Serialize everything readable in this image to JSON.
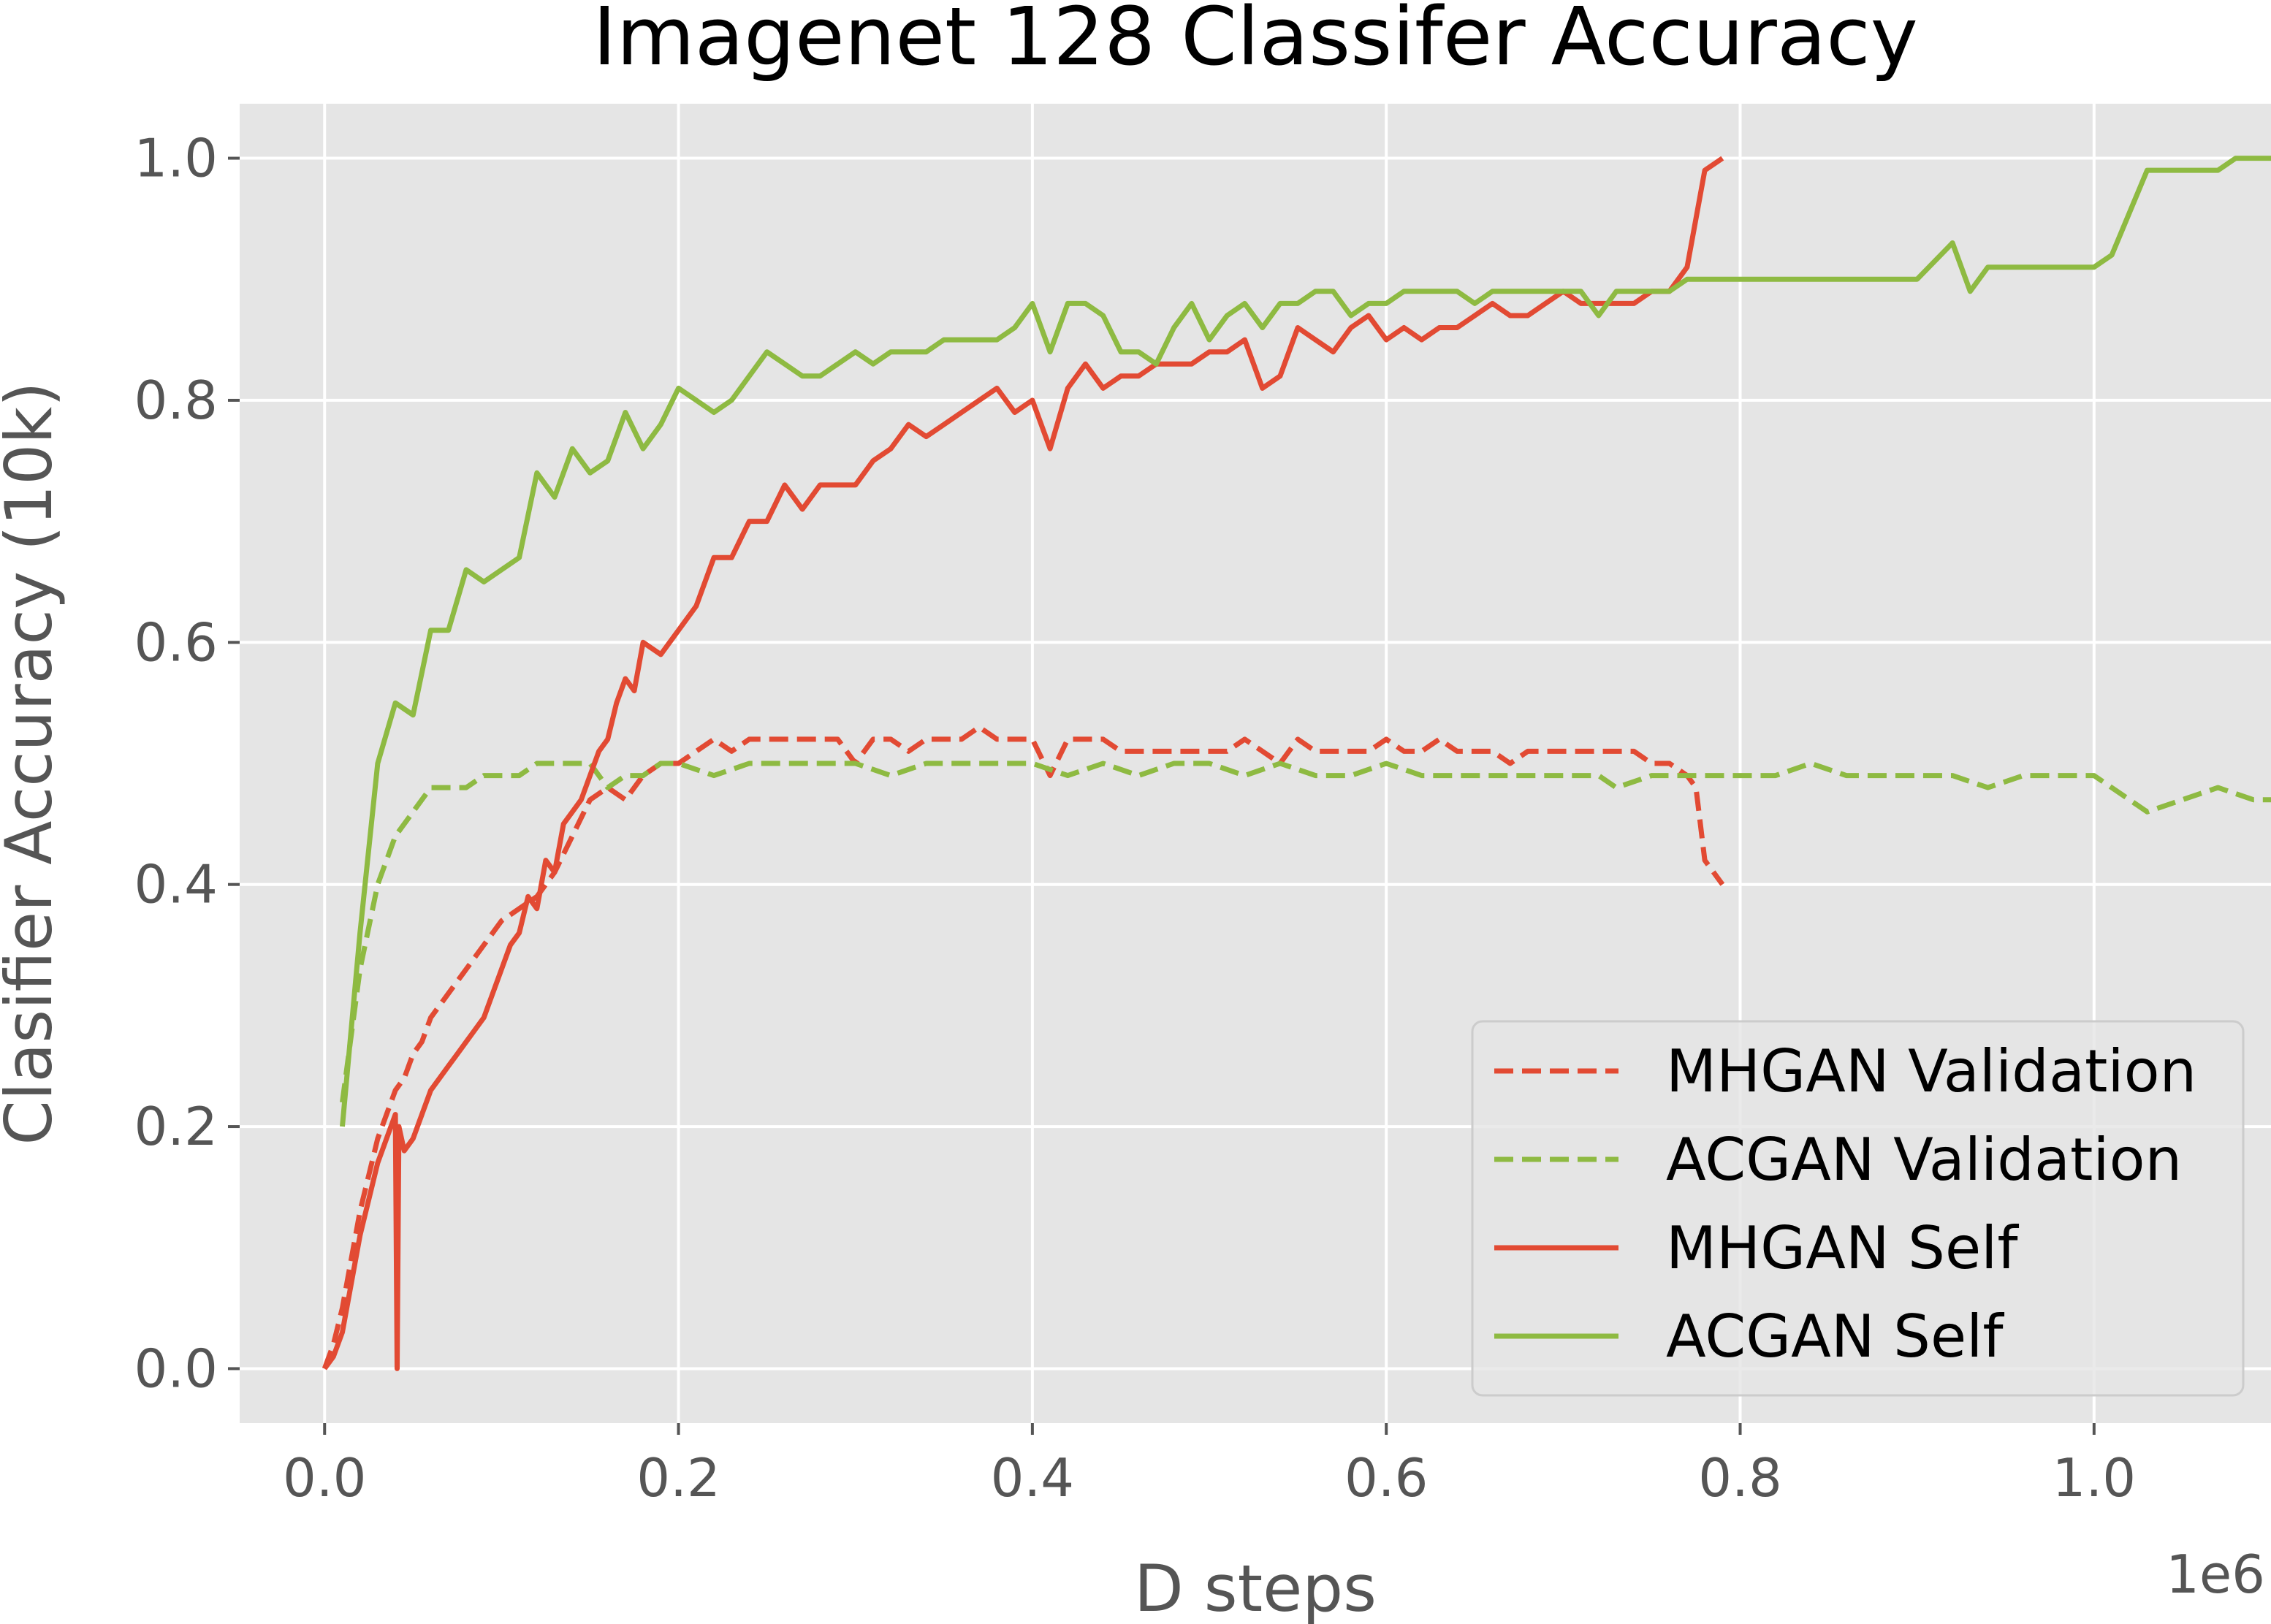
{
  "chart_data": {
    "type": "line",
    "title": "Imagenet 128 Classifer Accuracy",
    "xlabel": "D steps",
    "ylabel": "Clasifier Accuracy (10k)",
    "x_offset_label": "1e6",
    "xlim": [
      -0.048,
      1.1
    ],
    "ylim": [
      -0.045,
      1.045
    ],
    "x_ticks": [
      {
        "value": 0.0,
        "label": "0.0"
      },
      {
        "value": 0.2,
        "label": "0.2"
      },
      {
        "value": 0.4,
        "label": "0.4"
      },
      {
        "value": 0.6,
        "label": "0.6"
      },
      {
        "value": 0.8,
        "label": "0.8"
      },
      {
        "value": 1.0,
        "label": "1.0"
      }
    ],
    "y_ticks": [
      {
        "value": 0.0,
        "label": "0.0"
      },
      {
        "value": 0.2,
        "label": "0.2"
      },
      {
        "value": 0.4,
        "label": "0.4"
      },
      {
        "value": 0.6,
        "label": "0.6"
      },
      {
        "value": 0.8,
        "label": "0.8"
      },
      {
        "value": 1.0,
        "label": "1.0"
      }
    ],
    "grid": true,
    "legend_position": "lower right",
    "colors": {
      "red": "#e24a33",
      "green": "#8eba42",
      "background": "#e5e5e5",
      "grid": "#ffffff"
    },
    "series": [
      {
        "name": "MHGAN Validation",
        "color": "#e24a33",
        "dash": true,
        "x": [
          0.0,
          0.005,
          0.01,
          0.015,
          0.02,
          0.025,
          0.03,
          0.035,
          0.04,
          0.045,
          0.05,
          0.055,
          0.06,
          0.065,
          0.07,
          0.075,
          0.08,
          0.085,
          0.09,
          0.095,
          0.1,
          0.11,
          0.12,
          0.13,
          0.14,
          0.15,
          0.16,
          0.17,
          0.18,
          0.19,
          0.2,
          0.21,
          0.22,
          0.23,
          0.24,
          0.25,
          0.26,
          0.27,
          0.28,
          0.29,
          0.3,
          0.31,
          0.32,
          0.33,
          0.34,
          0.35,
          0.36,
          0.37,
          0.38,
          0.39,
          0.4,
          0.41,
          0.42,
          0.43,
          0.44,
          0.45,
          0.46,
          0.47,
          0.48,
          0.49,
          0.5,
          0.51,
          0.52,
          0.53,
          0.54,
          0.55,
          0.56,
          0.57,
          0.58,
          0.59,
          0.6,
          0.61,
          0.62,
          0.63,
          0.64,
          0.65,
          0.66,
          0.67,
          0.68,
          0.69,
          0.7,
          0.71,
          0.72,
          0.73,
          0.74,
          0.75,
          0.76,
          0.77,
          0.775,
          0.78,
          0.79
        ],
        "y": [
          0.0,
          0.02,
          0.05,
          0.09,
          0.13,
          0.16,
          0.19,
          0.21,
          0.23,
          0.24,
          0.26,
          0.27,
          0.29,
          0.3,
          0.31,
          0.32,
          0.33,
          0.34,
          0.35,
          0.36,
          0.37,
          0.38,
          0.39,
          0.41,
          0.44,
          0.47,
          0.48,
          0.47,
          0.49,
          0.5,
          0.5,
          0.51,
          0.52,
          0.51,
          0.52,
          0.52,
          0.52,
          0.52,
          0.52,
          0.52,
          0.5,
          0.52,
          0.52,
          0.51,
          0.52,
          0.52,
          0.52,
          0.53,
          0.52,
          0.52,
          0.52,
          0.49,
          0.52,
          0.52,
          0.52,
          0.51,
          0.51,
          0.51,
          0.51,
          0.51,
          0.51,
          0.51,
          0.52,
          0.51,
          0.5,
          0.52,
          0.51,
          0.51,
          0.51,
          0.51,
          0.52,
          0.51,
          0.51,
          0.52,
          0.51,
          0.51,
          0.51,
          0.5,
          0.51,
          0.51,
          0.51,
          0.51,
          0.51,
          0.51,
          0.51,
          0.5,
          0.5,
          0.49,
          0.48,
          0.42,
          0.4
        ]
      },
      {
        "name": "ACGAN Validation",
        "color": "#8eba42",
        "dash": true,
        "x": [
          0.01,
          0.02,
          0.03,
          0.04,
          0.05,
          0.06,
          0.07,
          0.08,
          0.09,
          0.1,
          0.11,
          0.12,
          0.13,
          0.14,
          0.15,
          0.16,
          0.17,
          0.18,
          0.19,
          0.2,
          0.22,
          0.24,
          0.26,
          0.28,
          0.3,
          0.32,
          0.34,
          0.36,
          0.38,
          0.4,
          0.42,
          0.44,
          0.46,
          0.48,
          0.5,
          0.52,
          0.54,
          0.56,
          0.58,
          0.6,
          0.62,
          0.64,
          0.66,
          0.68,
          0.7,
          0.72,
          0.73,
          0.75,
          0.77,
          0.79,
          0.8,
          0.82,
          0.84,
          0.86,
          0.88,
          0.9,
          0.92,
          0.94,
          0.96,
          0.98,
          1.0,
          1.02,
          1.03,
          1.05,
          1.07,
          1.09,
          1.1
        ],
        "y": [
          0.22,
          0.33,
          0.4,
          0.44,
          0.46,
          0.48,
          0.48,
          0.48,
          0.49,
          0.49,
          0.49,
          0.5,
          0.5,
          0.5,
          0.5,
          0.48,
          0.49,
          0.49,
          0.5,
          0.5,
          0.49,
          0.5,
          0.5,
          0.5,
          0.5,
          0.49,
          0.5,
          0.5,
          0.5,
          0.5,
          0.49,
          0.5,
          0.49,
          0.5,
          0.5,
          0.49,
          0.5,
          0.49,
          0.49,
          0.5,
          0.49,
          0.49,
          0.49,
          0.49,
          0.49,
          0.49,
          0.48,
          0.49,
          0.49,
          0.49,
          0.49,
          0.49,
          0.5,
          0.49,
          0.49,
          0.49,
          0.49,
          0.48,
          0.49,
          0.49,
          0.49,
          0.47,
          0.46,
          0.47,
          0.48,
          0.47,
          0.47
        ]
      },
      {
        "name": "MHGAN Self",
        "color": "#e24a33",
        "dash": false,
        "x": [
          0.0,
          0.005,
          0.01,
          0.015,
          0.02,
          0.025,
          0.03,
          0.035,
          0.04,
          0.041,
          0.042,
          0.045,
          0.05,
          0.055,
          0.06,
          0.065,
          0.07,
          0.075,
          0.08,
          0.085,
          0.09,
          0.095,
          0.1,
          0.105,
          0.11,
          0.115,
          0.12,
          0.125,
          0.13,
          0.135,
          0.14,
          0.145,
          0.15,
          0.155,
          0.16,
          0.165,
          0.17,
          0.175,
          0.18,
          0.19,
          0.2,
          0.21,
          0.22,
          0.23,
          0.24,
          0.25,
          0.26,
          0.27,
          0.28,
          0.29,
          0.3,
          0.31,
          0.32,
          0.33,
          0.34,
          0.35,
          0.36,
          0.37,
          0.38,
          0.39,
          0.4,
          0.41,
          0.42,
          0.43,
          0.44,
          0.45,
          0.46,
          0.47,
          0.48,
          0.49,
          0.5,
          0.51,
          0.52,
          0.53,
          0.54,
          0.55,
          0.56,
          0.57,
          0.58,
          0.59,
          0.6,
          0.61,
          0.62,
          0.63,
          0.64,
          0.65,
          0.66,
          0.67,
          0.68,
          0.69,
          0.7,
          0.71,
          0.72,
          0.73,
          0.74,
          0.75,
          0.76,
          0.77,
          0.78,
          0.79
        ],
        "y": [
          0.0,
          0.01,
          0.03,
          0.07,
          0.11,
          0.14,
          0.17,
          0.19,
          0.21,
          0.0,
          0.2,
          0.18,
          0.19,
          0.21,
          0.23,
          0.24,
          0.25,
          0.26,
          0.27,
          0.28,
          0.29,
          0.31,
          0.33,
          0.35,
          0.36,
          0.39,
          0.38,
          0.42,
          0.41,
          0.45,
          0.46,
          0.47,
          0.49,
          0.51,
          0.52,
          0.55,
          0.57,
          0.56,
          0.6,
          0.59,
          0.61,
          0.63,
          0.67,
          0.67,
          0.7,
          0.7,
          0.73,
          0.71,
          0.73,
          0.73,
          0.73,
          0.75,
          0.76,
          0.78,
          0.77,
          0.78,
          0.79,
          0.8,
          0.81,
          0.79,
          0.8,
          0.76,
          0.81,
          0.83,
          0.81,
          0.82,
          0.82,
          0.83,
          0.83,
          0.83,
          0.84,
          0.84,
          0.85,
          0.81,
          0.82,
          0.86,
          0.85,
          0.84,
          0.86,
          0.87,
          0.85,
          0.86,
          0.85,
          0.86,
          0.86,
          0.87,
          0.88,
          0.87,
          0.87,
          0.88,
          0.89,
          0.88,
          0.88,
          0.88,
          0.88,
          0.89,
          0.89,
          0.91,
          0.99,
          1.0
        ]
      },
      {
        "name": "ACGAN Self",
        "color": "#8eba42",
        "dash": false,
        "x": [
          0.01,
          0.02,
          0.03,
          0.04,
          0.05,
          0.06,
          0.07,
          0.08,
          0.09,
          0.1,
          0.11,
          0.12,
          0.13,
          0.14,
          0.15,
          0.16,
          0.17,
          0.18,
          0.19,
          0.2,
          0.21,
          0.22,
          0.23,
          0.24,
          0.25,
          0.26,
          0.27,
          0.28,
          0.29,
          0.3,
          0.31,
          0.32,
          0.33,
          0.34,
          0.35,
          0.36,
          0.37,
          0.38,
          0.39,
          0.4,
          0.41,
          0.42,
          0.43,
          0.44,
          0.45,
          0.46,
          0.47,
          0.48,
          0.49,
          0.5,
          0.51,
          0.52,
          0.53,
          0.54,
          0.55,
          0.56,
          0.57,
          0.58,
          0.59,
          0.6,
          0.61,
          0.62,
          0.63,
          0.64,
          0.65,
          0.66,
          0.67,
          0.68,
          0.69,
          0.7,
          0.71,
          0.72,
          0.73,
          0.74,
          0.75,
          0.76,
          0.77,
          0.78,
          0.79,
          0.8,
          0.82,
          0.84,
          0.86,
          0.88,
          0.9,
          0.92,
          0.93,
          0.94,
          0.96,
          0.98,
          1.0,
          1.01,
          1.03,
          1.04,
          1.06,
          1.07,
          1.08,
          1.1
        ],
        "y": [
          0.2,
          0.36,
          0.5,
          0.55,
          0.54,
          0.61,
          0.61,
          0.66,
          0.65,
          0.66,
          0.67,
          0.74,
          0.72,
          0.76,
          0.74,
          0.75,
          0.79,
          0.76,
          0.78,
          0.81,
          0.8,
          0.79,
          0.8,
          0.82,
          0.84,
          0.83,
          0.82,
          0.82,
          0.83,
          0.84,
          0.83,
          0.84,
          0.84,
          0.84,
          0.85,
          0.85,
          0.85,
          0.85,
          0.86,
          0.88,
          0.84,
          0.88,
          0.88,
          0.87,
          0.84,
          0.84,
          0.83,
          0.86,
          0.88,
          0.85,
          0.87,
          0.88,
          0.86,
          0.88,
          0.88,
          0.89,
          0.89,
          0.87,
          0.88,
          0.88,
          0.89,
          0.89,
          0.89,
          0.89,
          0.88,
          0.89,
          0.89,
          0.89,
          0.89,
          0.89,
          0.89,
          0.87,
          0.89,
          0.89,
          0.89,
          0.89,
          0.9,
          0.9,
          0.9,
          0.9,
          0.9,
          0.9,
          0.9,
          0.9,
          0.9,
          0.93,
          0.89,
          0.91,
          0.91,
          0.91,
          0.91,
          0.92,
          0.99,
          0.99,
          0.99,
          0.99,
          1.0,
          1.0
        ]
      }
    ]
  }
}
